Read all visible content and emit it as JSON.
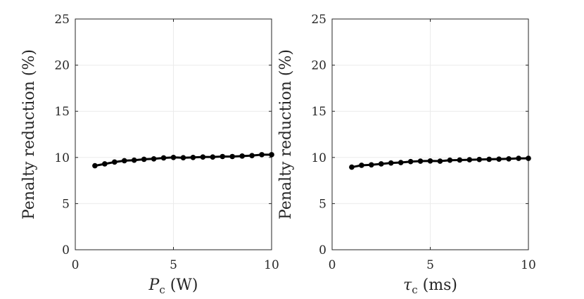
{
  "chart_data": [
    {
      "type": "line",
      "xlabel_symbol": "P",
      "xlabel_subscript": "c",
      "xlabel_unit": "(W)",
      "ylabel": "Penalty reduction (%)",
      "xlim": [
        0,
        10
      ],
      "ylim": [
        0,
        25
      ],
      "xticks": [
        0,
        5,
        10
      ],
      "yticks": [
        0,
        5,
        10,
        15,
        20,
        25
      ],
      "grid": true,
      "series": [
        {
          "name": "penalty-reduction",
          "x": [
            1,
            1.5,
            2,
            2.5,
            3,
            3.5,
            4,
            4.5,
            5,
            5.5,
            6,
            6.5,
            7,
            7.5,
            8,
            8.5,
            9,
            9.5,
            10
          ],
          "y": [
            9.1,
            9.3,
            9.5,
            9.65,
            9.7,
            9.8,
            9.85,
            9.95,
            10.0,
            9.97,
            10.0,
            10.05,
            10.05,
            10.1,
            10.1,
            10.15,
            10.2,
            10.3,
            10.3
          ]
        }
      ]
    },
    {
      "type": "line",
      "xlabel_symbol": "τ",
      "xlabel_subscript": "c",
      "xlabel_unit": "(ms)",
      "ylabel": "Penalty reduction (%)",
      "xlim": [
        0,
        10
      ],
      "ylim": [
        0,
        25
      ],
      "xticks": [
        0,
        5,
        10
      ],
      "yticks": [
        0,
        5,
        10,
        15,
        20,
        25
      ],
      "grid": true,
      "series": [
        {
          "name": "penalty-reduction",
          "x": [
            1,
            1.5,
            2,
            2.5,
            3,
            3.5,
            4,
            4.5,
            5,
            5.5,
            6,
            6.5,
            7,
            7.5,
            8,
            8.5,
            9,
            9.5,
            10
          ],
          "y": [
            8.95,
            9.15,
            9.2,
            9.3,
            9.4,
            9.45,
            9.55,
            9.6,
            9.62,
            9.6,
            9.7,
            9.72,
            9.75,
            9.78,
            9.8,
            9.82,
            9.85,
            9.9,
            9.9
          ]
        }
      ]
    }
  ]
}
